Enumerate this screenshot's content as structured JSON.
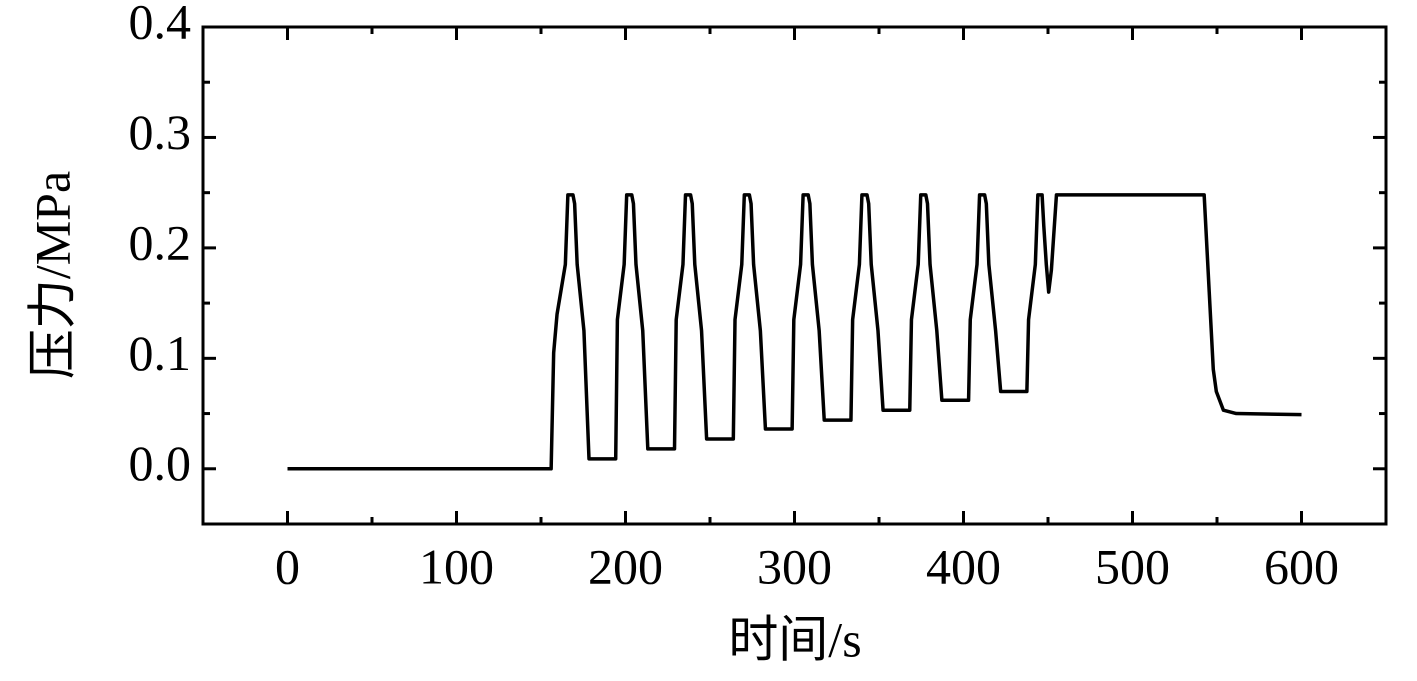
{
  "chart_data": {
    "type": "line",
    "xlabel": "时间/s",
    "ylabel": "压力/MPa",
    "xlim": [
      -50,
      650
    ],
    "ylim": [
      -0.05,
      0.4
    ],
    "xticks": [
      0,
      100,
      200,
      300,
      400,
      500,
      600
    ],
    "xminorticks": [
      -50,
      50,
      150,
      250,
      350,
      450,
      550,
      650
    ],
    "yticks": [
      {
        "value": 0,
        "label": "0.0"
      },
      {
        "value": 0.1,
        "label": "0.1"
      },
      {
        "value": 0.2,
        "label": "0.2"
      },
      {
        "value": 0.3,
        "label": "0.3"
      },
      {
        "value": 0.4,
        "label": "0.4"
      }
    ],
    "yminorticks": [
      -0.05,
      0.05,
      0.15,
      0.25,
      0.35
    ],
    "series": [
      {
        "color": "#000000",
        "x": [
          0,
          156,
          157.5,
          159.5,
          164.4,
          165.9,
          168.9,
          169.9,
          171.4,
          175.4,
          178.4,
          194.2,
          195.2,
          199.2,
          200.7,
          203.7,
          204.7,
          206.2,
          210.2,
          213.2,
          229,
          230,
          234,
          235.5,
          238.5,
          239.5,
          241,
          245,
          248,
          263.8,
          264.8,
          268.8,
          270.3,
          273.3,
          274.3,
          275.8,
          279.8,
          282.8,
          298.6,
          299.6,
          303.6,
          305.1,
          308.1,
          309.1,
          310.6,
          314.6,
          317.6,
          333.4,
          334.4,
          338.4,
          339.9,
          342.9,
          343.9,
          345.4,
          349.4,
          352.4,
          368.2,
          369.2,
          373.2,
          374.7,
          377.7,
          378.7,
          380.2,
          384.2,
          387.2,
          403,
          404,
          408,
          409.5,
          412.5,
          413.5,
          415,
          419,
          422,
          437.5,
          438.5,
          442.5,
          444,
          446.5,
          447.5,
          449,
          450.4,
          452,
          455,
          542.4,
          545.4,
          547.8,
          549.6,
          553.8,
          561.4,
          600
        ],
        "values": [
          0,
          0,
          0.105,
          0.14,
          0.185,
          0.248,
          0.248,
          0.24,
          0.185,
          0.125,
          0.009,
          0.009,
          0.135,
          0.185,
          0.248,
          0.248,
          0.24,
          0.185,
          0.125,
          0.018,
          0.018,
          0.135,
          0.185,
          0.248,
          0.248,
          0.24,
          0.185,
          0.125,
          0.027,
          0.027,
          0.135,
          0.185,
          0.248,
          0.248,
          0.24,
          0.185,
          0.125,
          0.036,
          0.036,
          0.135,
          0.185,
          0.248,
          0.248,
          0.24,
          0.185,
          0.125,
          0.044,
          0.044,
          0.135,
          0.185,
          0.248,
          0.248,
          0.24,
          0.185,
          0.125,
          0.053,
          0.053,
          0.135,
          0.185,
          0.248,
          0.248,
          0.24,
          0.185,
          0.125,
          0.062,
          0.062,
          0.135,
          0.185,
          0.248,
          0.248,
          0.24,
          0.185,
          0.125,
          0.07,
          0.07,
          0.135,
          0.185,
          0.248,
          0.248,
          0.22,
          0.185,
          0.16,
          0.18,
          0.248,
          0.248,
          0.16,
          0.09,
          0.07,
          0.053,
          0.05,
          0.049
        ]
      }
    ]
  }
}
